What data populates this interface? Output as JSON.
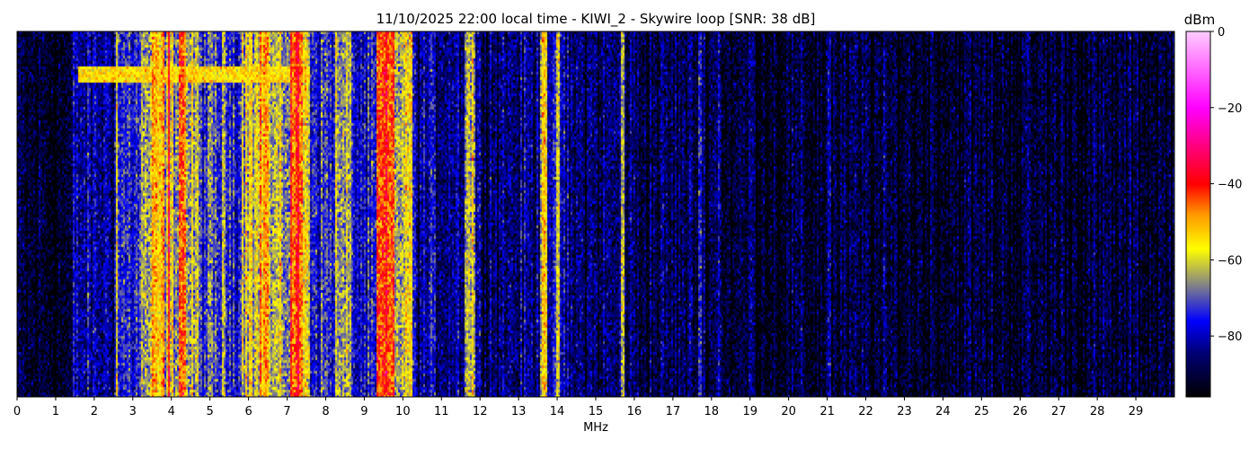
{
  "chart_data": {
    "type": "heatmap",
    "title": "11/10/2025 22:00 local time - KIWI_2 - Skywire loop [SNR: 38 dB]",
    "xlabel": "MHz",
    "ylabel": "",
    "xlim": [
      0,
      30
    ],
    "xticks": [
      0,
      1,
      2,
      3,
      4,
      5,
      6,
      7,
      8,
      9,
      10,
      11,
      12,
      13,
      14,
      15,
      16,
      17,
      18,
      19,
      20,
      21,
      22,
      23,
      24,
      25,
      26,
      27,
      28,
      29
    ],
    "colorbar": {
      "label": "dBm",
      "clim": [
        -96,
        0
      ],
      "ticks": [
        0,
        -20,
        -40,
        -60,
        -80
      ],
      "colormap": [
        {
          "dbm": -96,
          "color": "#000000"
        },
        {
          "dbm": -84,
          "color": "#00007a"
        },
        {
          "dbm": -76,
          "color": "#0000ff"
        },
        {
          "dbm": -66,
          "color": "#8a8a80"
        },
        {
          "dbm": -57,
          "color": "#ffff00"
        },
        {
          "dbm": -48,
          "color": "#ff9900"
        },
        {
          "dbm": -40,
          "color": "#ff0000"
        },
        {
          "dbm": -20,
          "color": "#ff00ff"
        },
        {
          "dbm": 0,
          "color": "#ffccff"
        }
      ]
    },
    "spectrum_profile_mhz_dbm": [
      [
        0,
        1.45,
        -92
      ],
      [
        1.45,
        2.5,
        -82
      ],
      [
        2.5,
        3.2,
        -74
      ],
      [
        3.2,
        3.5,
        -64
      ],
      [
        3.5,
        3.8,
        -54
      ],
      [
        3.8,
        4.2,
        -62
      ],
      [
        4.2,
        4.4,
        -46
      ],
      [
        4.4,
        4.7,
        -64
      ],
      [
        4.7,
        5.8,
        -72
      ],
      [
        5.8,
        6.3,
        -60
      ],
      [
        6.3,
        6.5,
        -50
      ],
      [
        6.5,
        7.1,
        -64
      ],
      [
        7.1,
        7.4,
        -44
      ],
      [
        7.4,
        7.6,
        -58
      ],
      [
        7.6,
        8.3,
        -73
      ],
      [
        8.3,
        8.7,
        -66
      ],
      [
        8.7,
        9.3,
        -78
      ],
      [
        9.3,
        9.8,
        -46
      ],
      [
        9.8,
        10.1,
        -62
      ],
      [
        10.1,
        10.2,
        -56
      ],
      [
        10.2,
        11.6,
        -82
      ],
      [
        11.6,
        11.9,
        -62
      ],
      [
        11.9,
        13.55,
        -84
      ],
      [
        13.55,
        13.75,
        -56
      ],
      [
        13.75,
        14.2,
        -78
      ],
      [
        14.2,
        16.0,
        -86
      ],
      [
        16.0,
        18.3,
        -88
      ],
      [
        18.3,
        30,
        -91
      ]
    ],
    "narrow_signals_mhz_dbm": [
      [
        2.58,
        -58
      ],
      [
        3.92,
        -38
      ],
      [
        4.28,
        -44
      ],
      [
        5.35,
        -60
      ],
      [
        6.05,
        -54
      ],
      [
        7.3,
        -40
      ],
      [
        8.28,
        -58
      ],
      [
        9.55,
        -42
      ],
      [
        10.2,
        -55
      ],
      [
        11.8,
        -54
      ],
      [
        13.65,
        -52
      ],
      [
        14.02,
        -60
      ],
      [
        15.7,
        -62
      ],
      [
        17.7,
        -74
      ],
      [
        18.2,
        -78
      ],
      [
        21.05,
        -80
      ],
      [
        19.0,
        -84
      ],
      [
        22.0,
        -85
      ]
    ],
    "horizontal_event": {
      "mhz": [
        1.6,
        7.6
      ],
      "dbm": -55
    }
  }
}
